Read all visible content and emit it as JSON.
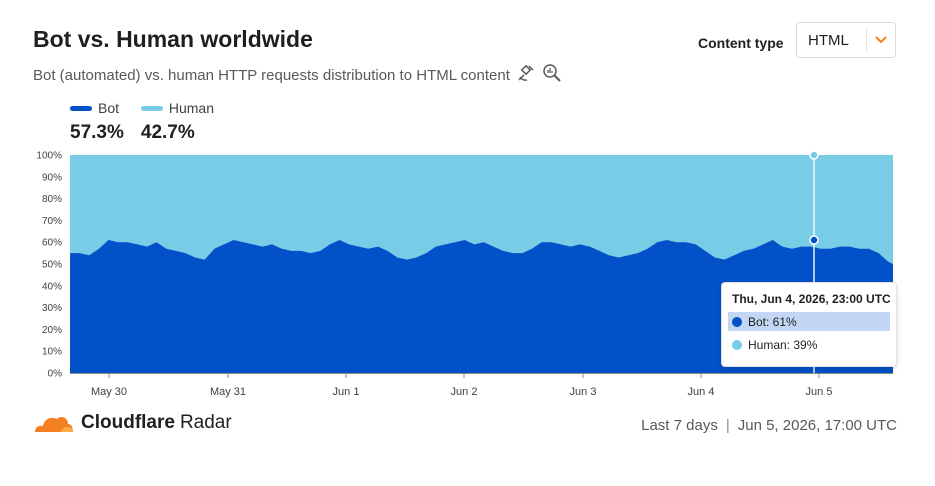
{
  "title": "Bot vs. Human worldwide",
  "subtitle": "Bot (automated) vs. human HTTP requests distribution to HTML content",
  "icons": [
    "satellite-icon",
    "zoom-icon"
  ],
  "content_type": {
    "label": "Content type",
    "value": "HTML"
  },
  "legend": [
    {
      "name": "Bot",
      "value": "57.3%",
      "color": "#0351c8"
    },
    {
      "name": "Human",
      "value": "42.7%",
      "color": "#78cce5"
    }
  ],
  "tooltip": {
    "title": "Thu, Jun 4, 2026, 23:00 UTC",
    "rows": [
      {
        "label": "Bot: 61%",
        "color": "#0351c8"
      },
      {
        "label": "Human: 39%",
        "color": "#78cce5"
      }
    ]
  },
  "chart_data": {
    "type": "area",
    "stacked": true,
    "y_ticks": [
      "0%",
      "10%",
      "20%",
      "30%",
      "40%",
      "50%",
      "60%",
      "70%",
      "80%",
      "90%",
      "100%"
    ],
    "ylim": [
      0,
      100
    ],
    "x_ticks": [
      "May 30",
      "May 31",
      "Jun 1",
      "Jun 2",
      "Jun 3",
      "Jun 4",
      "Jun 5"
    ],
    "series": [
      {
        "name": "Bot",
        "color": "#0351c8",
        "x": [
          0,
          2,
          4,
          6,
          8,
          10,
          12,
          14,
          16,
          18,
          20,
          22,
          24,
          26,
          28,
          30,
          32,
          34,
          36,
          38,
          40,
          42,
          44,
          46,
          48,
          50,
          52,
          54,
          56,
          58,
          60,
          62,
          64,
          66,
          68,
          70,
          72,
          74,
          76,
          78,
          80,
          82,
          84,
          86,
          88,
          90,
          92,
          94,
          96,
          98,
          100,
          102,
          104,
          106,
          108,
          110,
          112,
          114,
          116,
          118,
          120,
          122,
          124,
          126,
          128,
          130,
          132,
          134,
          136,
          138,
          140,
          142,
          144,
          146,
          148,
          150,
          152,
          154,
          156,
          158,
          160,
          162,
          164,
          166,
          168,
          170,
          171
        ],
        "values": [
          55,
          55,
          54,
          57,
          61,
          60,
          60,
          59,
          58,
          60,
          57,
          56,
          55,
          53,
          52,
          57,
          59,
          61,
          60,
          59,
          58,
          59,
          57,
          56,
          56,
          55,
          56,
          59,
          61,
          59,
          58,
          57,
          58,
          56,
          53,
          52,
          53,
          55,
          58,
          59,
          60,
          61,
          59,
          60,
          58,
          56,
          55,
          55,
          57,
          60,
          60,
          59,
          58,
          59,
          58,
          56,
          54,
          53,
          54,
          55,
          57,
          60,
          61,
          60,
          60,
          59,
          56,
          53,
          52,
          54,
          56,
          57,
          59,
          61,
          58,
          57,
          58,
          58,
          57,
          57,
          58,
          58,
          57,
          57,
          55,
          51,
          50
        ]
      },
      {
        "name": "Human",
        "color": "#78cce5",
        "values_note_complement": true
      }
    ]
  },
  "footer": {
    "brand": "Cloudflare",
    "product": "Radar",
    "range": "Last 7 days",
    "timestamp": "Jun 5, 2026, 17:00 UTC"
  }
}
